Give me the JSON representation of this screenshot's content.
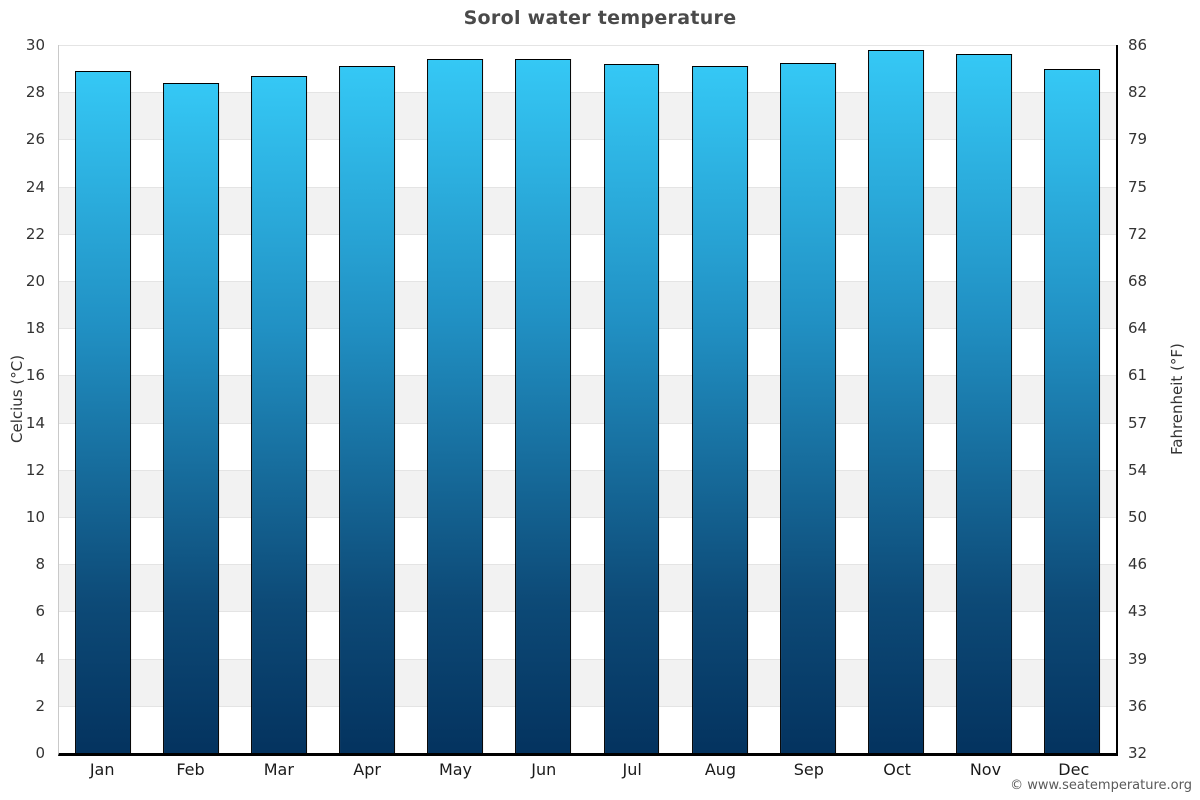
{
  "page": {
    "title": "Sorol water temperature"
  },
  "chart_data": {
    "type": "bar",
    "title": "Sorol water temperature",
    "categories": [
      "Jan",
      "Feb",
      "Mar",
      "Apr",
      "May",
      "Jun",
      "Jul",
      "Aug",
      "Sep",
      "Oct",
      "Nov",
      "Dec"
    ],
    "values": [
      28.9,
      28.4,
      28.7,
      29.1,
      29.4,
      29.4,
      29.2,
      29.1,
      29.25,
      29.8,
      29.6,
      29.0
    ],
    "unit": "°C",
    "ylabel_left": "Celcius (°C)",
    "ylabel_right": "Fahrenheit (°F)",
    "ylim": [
      0,
      30
    ],
    "yticks_celsius": [
      30,
      28,
      26,
      24,
      22,
      20,
      18,
      16,
      14,
      12,
      10,
      8,
      6,
      4,
      2,
      0
    ],
    "yticks_fahrenheit": [
      "86",
      "82",
      "79",
      "75",
      "72",
      "68",
      "64",
      "61",
      "57",
      "54",
      "50",
      "46",
      "43",
      "39",
      "36",
      "32"
    ],
    "grid": "horizontal alternating bands every 2°C, band lines light gray",
    "legend_position": "none",
    "colors": {
      "bar_gradient_top": "#35c8f5",
      "bar_gradient_upper_mid": "#2191c4",
      "bar_gradient_lower_mid": "#0d4a77",
      "bar_gradient_bottom": "#04335f",
      "bar_border": "#000000",
      "band_fill_gray": "#f2f2f2",
      "band_fill_white": "#ffffff",
      "grid_line": "#e4e4e4",
      "axis_line_left": "#c9c9c9",
      "axis_line_right": "#000000",
      "axis_line_bottom": "#000000",
      "title_text": "#4a4a4a",
      "tick_text": "#333333",
      "month_text": "#1a1a1a",
      "footer_text": "#5a5a5a"
    }
  },
  "footer": {
    "credit": "© www.seatemperature.org"
  }
}
